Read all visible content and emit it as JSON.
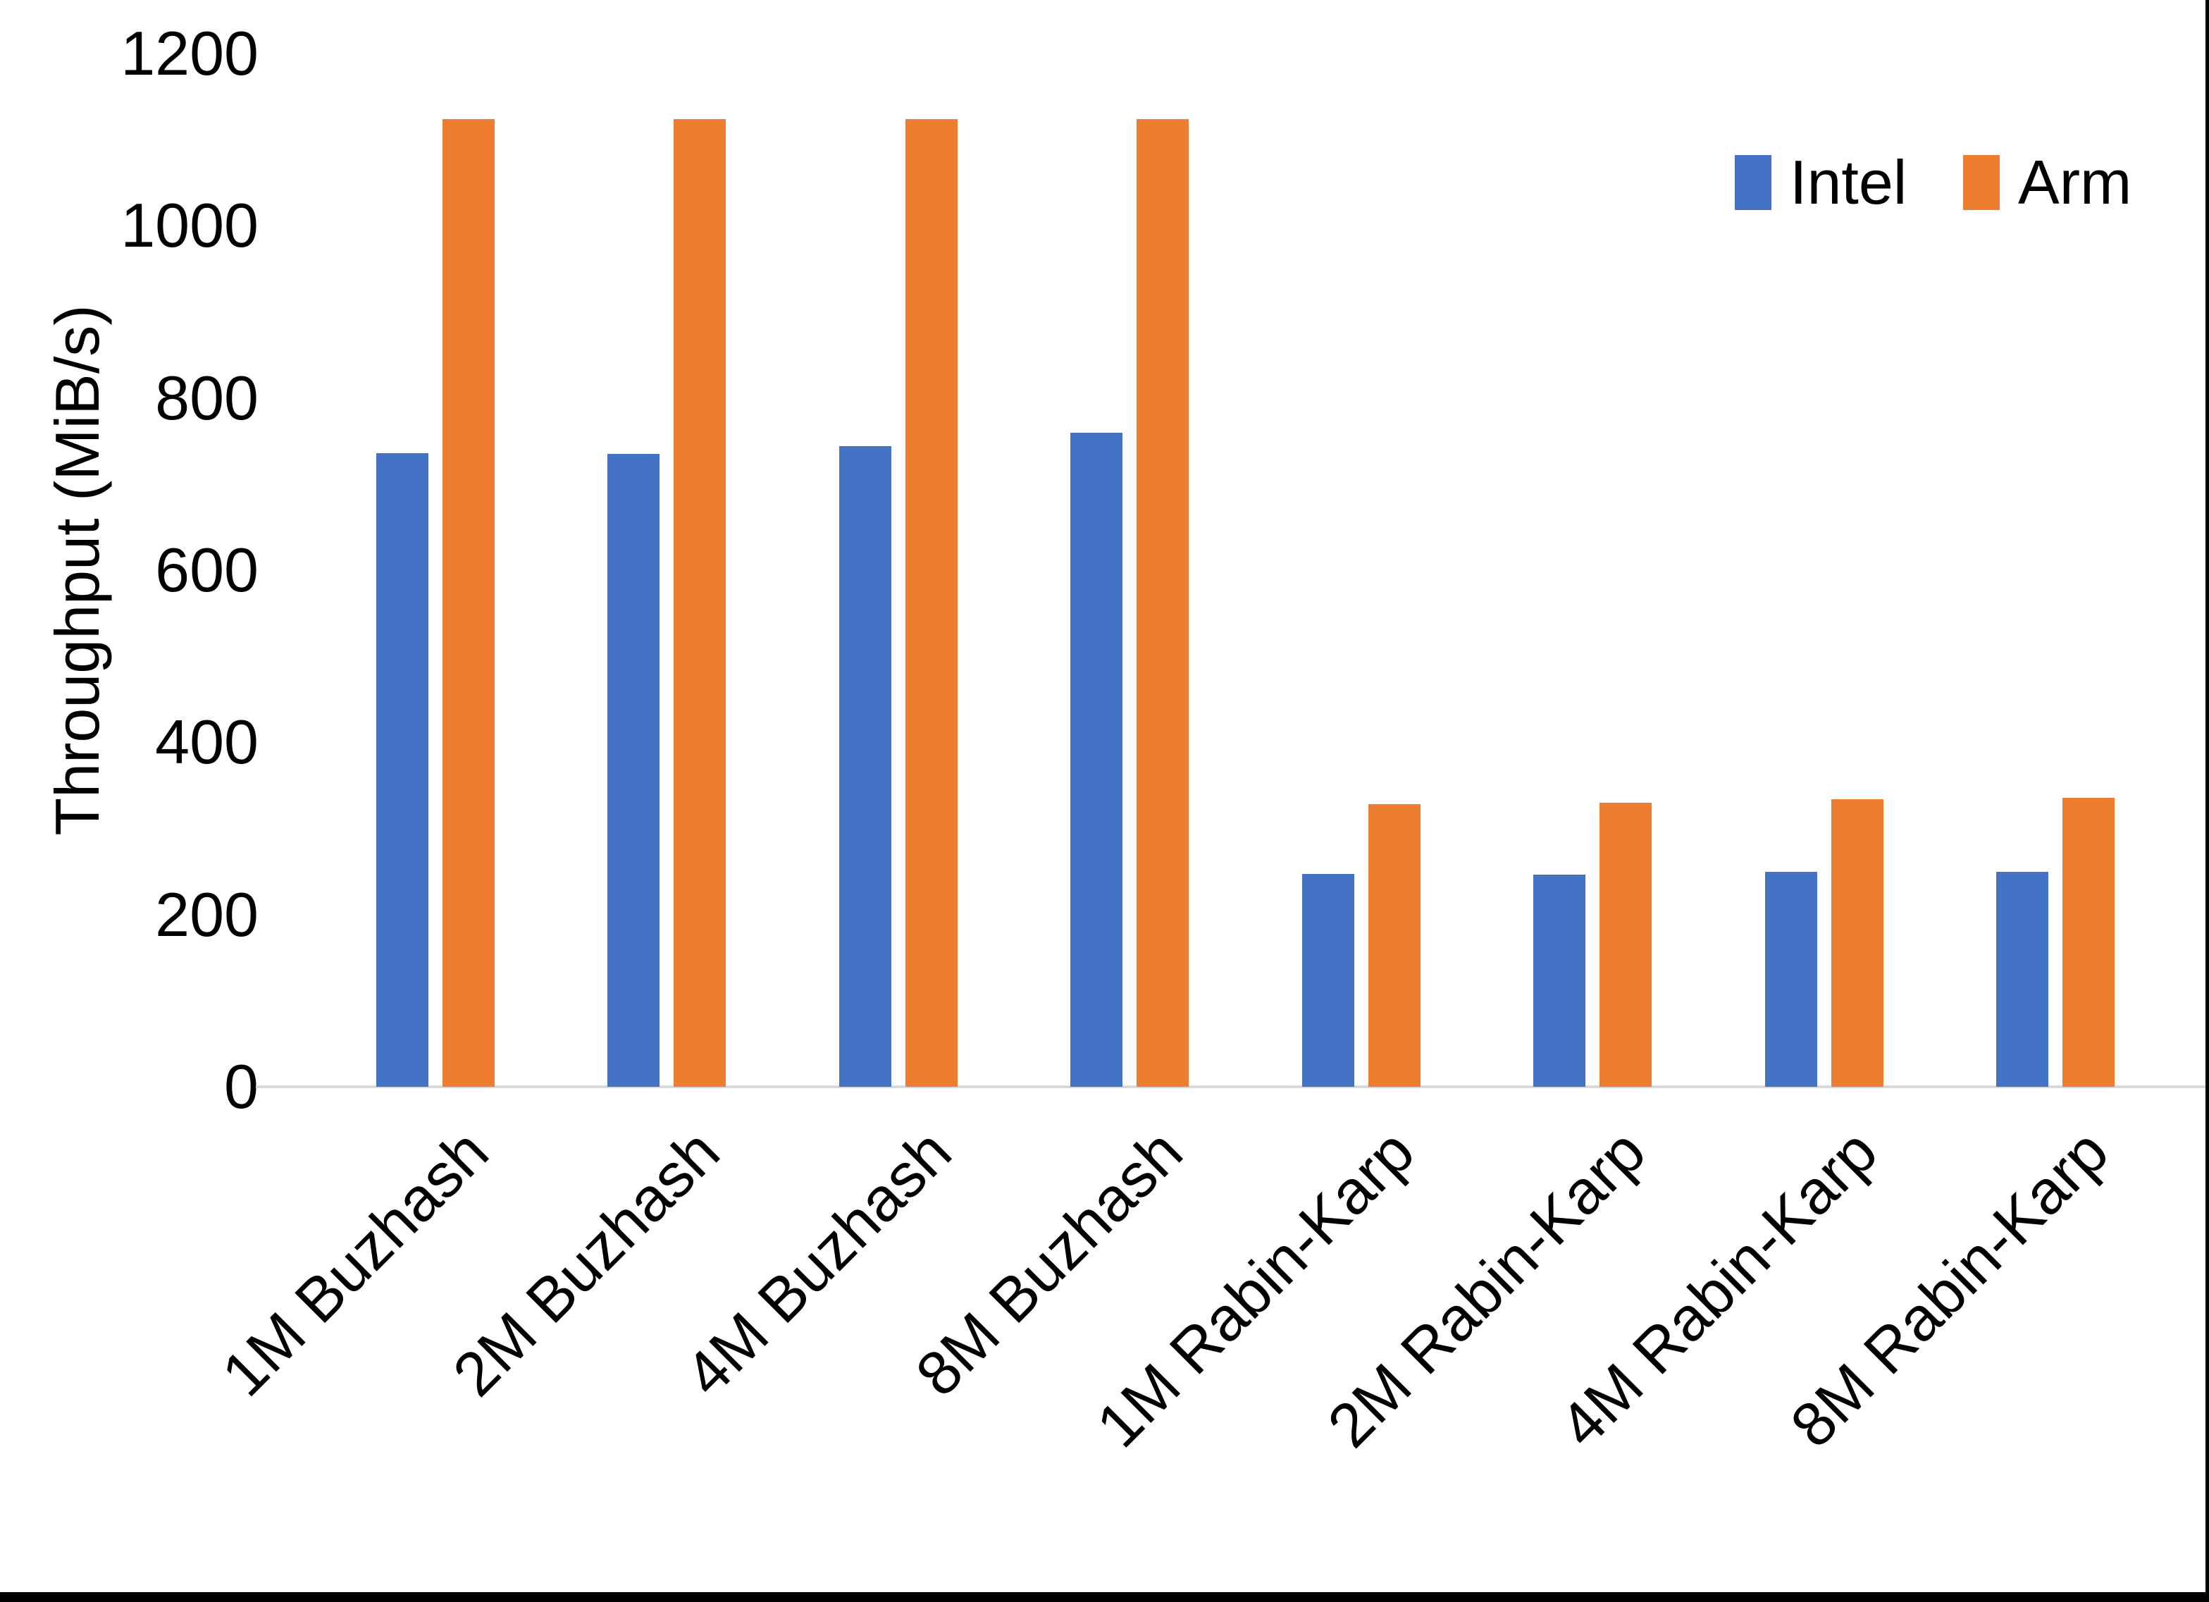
{
  "chart_data": {
    "type": "bar",
    "title": "",
    "xlabel": "",
    "ylabel": "Throughput (MiB/s)",
    "categories": [
      "1M Buzhash",
      "2M Buzhash",
      "4M Buzhash",
      "8M Buzhash",
      "1M Rabin-Karp",
      "2M Rabin-Karp",
      "4M Rabin-Karp",
      "8M Rabin-Karp"
    ],
    "series": [
      {
        "name": "Intel",
        "color": "#4472C4",
        "values": [
          736,
          735,
          744,
          760,
          247,
          246,
          250,
          250
        ]
      },
      {
        "name": "Arm",
        "color": "#ED7D31",
        "values": [
          1124,
          1124,
          1124,
          1124,
          328,
          330,
          334,
          336
        ]
      }
    ],
    "ylim": [
      0,
      1200
    ],
    "yticks": [
      0,
      200,
      400,
      600,
      800,
      1000,
      1200
    ],
    "grid": false,
    "legend_position": "top-right"
  },
  "axis": {
    "line_color": "#D9D9D9",
    "text_color": "#000000"
  },
  "frame": {
    "background": "#FFFFFF",
    "bottom_bar_color": "#000000",
    "right_border_color": "#000000"
  }
}
